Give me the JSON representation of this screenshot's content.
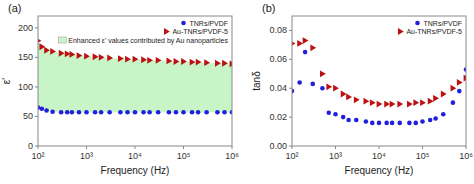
{
  "chart_data": [
    {
      "type": "scatter",
      "title": "(a)",
      "x_label": "Frequency (Hz)",
      "y_label": "ε’",
      "log": "x",
      "xlim": [
        100,
        1000000
      ],
      "xticks": [
        {
          "value": 100,
          "label": "10²"
        },
        {
          "value": 1000,
          "label": "10³"
        },
        {
          "value": 10000,
          "label": "10⁴"
        },
        {
          "value": 100000,
          "label": "10⁵"
        },
        {
          "value": 1000000,
          "label": "10⁶"
        }
      ],
      "ylim": [
        0,
        220
      ],
      "yticks": [
        0,
        50,
        100,
        150,
        200
      ],
      "grid": false,
      "legend": "upper right",
      "x": [
        100,
        120,
        150,
        200,
        300,
        400,
        500,
        700,
        1000,
        1500,
        2000,
        3000,
        5000,
        7000,
        10000,
        15000,
        20000,
        30000,
        50000,
        70000,
        100000,
        150000,
        200000,
        300000,
        500000,
        700000,
        1000000
      ],
      "series": [
        {
          "name": "TNRs/PVDF",
          "color": "#2020dd",
          "marker": "circle",
          "values": [
            65,
            63,
            60,
            58,
            57,
            57,
            57,
            57,
            57,
            57,
            57,
            57,
            57,
            57,
            57,
            57,
            57,
            57,
            57,
            57,
            57,
            57,
            57,
            57,
            57,
            57,
            57
          ]
        },
        {
          "name": "Au-TNRs/PVDF-5",
          "color": "#bb1111",
          "marker": "triangle-right",
          "values": [
            178,
            168,
            162,
            160,
            157,
            156,
            155,
            153,
            152,
            151,
            150,
            149,
            148,
            147,
            147,
            146,
            145,
            145,
            144,
            143,
            143,
            142,
            142,
            141,
            140,
            140,
            139
          ]
        },
        {
          "name": "Enhanced ε’ values contributed by Au nanoparticles",
          "type": "band",
          "color": "#c8f5c8"
        }
      ]
    },
    {
      "type": "scatter",
      "title": "(b)",
      "x_label": "Frequency (Hz)",
      "y_label": "tanδ",
      "log": "x",
      "xlim": [
        100,
        1000000
      ],
      "xticks": [
        {
          "value": 100,
          "label": "10²"
        },
        {
          "value": 1000,
          "label": "10³"
        },
        {
          "value": 10000,
          "label": "10⁴"
        },
        {
          "value": 100000,
          "label": "10⁵"
        },
        {
          "value": 1000000,
          "label": "10⁶"
        }
      ],
      "ylim": [
        0.0,
        0.09
      ],
      "yticks": [
        {
          "value": 0,
          "label": "0.00"
        },
        0.02,
        0.04,
        0.06,
        0.08
      ],
      "grid": false,
      "legend": "upper right",
      "x": [
        100,
        150,
        200,
        300,
        500,
        700,
        1000,
        1500,
        2000,
        3000,
        5000,
        7000,
        10000,
        15000,
        20000,
        30000,
        50000,
        70000,
        100000,
        150000,
        200000,
        300000,
        500000,
        700000,
        1000000
      ],
      "series": [
        {
          "name": "TNRs/PVDF",
          "color": "#2020dd",
          "marker": "circle",
          "values": [
            0.038,
            0.044,
            0.065,
            0.043,
            0.04,
            0.023,
            0.022,
            0.02,
            0.018,
            0.018,
            0.017,
            0.016,
            0.016,
            0.016,
            0.016,
            0.016,
            0.016,
            0.016,
            0.017,
            0.018,
            0.019,
            0.022,
            0.03,
            0.038,
            0.053
          ]
        },
        {
          "name": "Au-TNRs/PVDF-5",
          "color": "#bb1111",
          "marker": "triangle-right",
          "values": [
            0.071,
            0.071,
            0.073,
            0.068,
            0.05,
            0.041,
            0.04,
            0.036,
            0.034,
            0.032,
            0.031,
            0.03,
            0.029,
            0.029,
            0.029,
            0.029,
            0.029,
            0.03,
            0.03,
            0.031,
            0.033,
            0.036,
            0.04,
            0.044,
            0.047
          ]
        }
      ]
    }
  ]
}
